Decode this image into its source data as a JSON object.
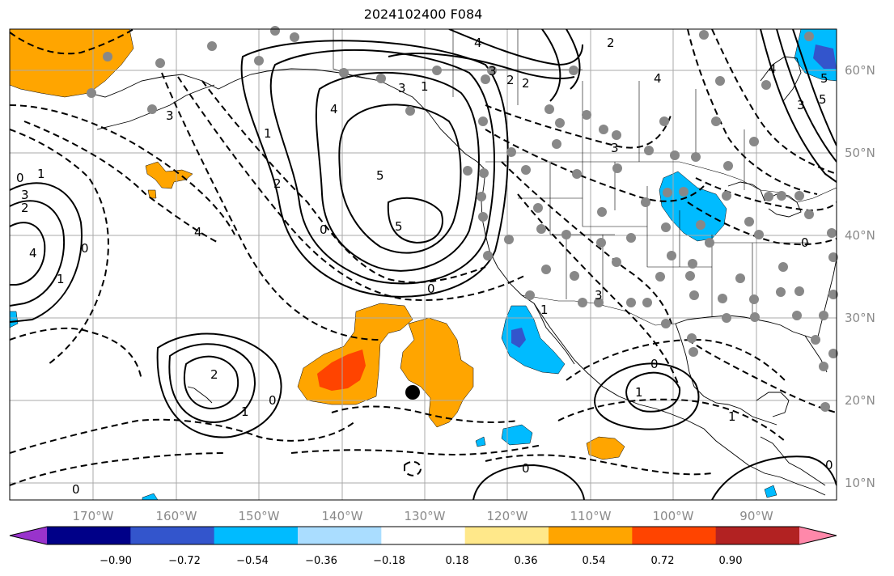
{
  "title": "2024102400 F084",
  "colors": {
    "bins": [
      "#9933cc",
      "#000088",
      "#3355cc",
      "#00bbff",
      "#aaddff",
      "#ffffff",
      "#ffe88a",
      "#ffa500",
      "#ff4400",
      "#b22222",
      "#ff88aa"
    ],
    "station": "#888888",
    "grid": "#aaaaaa",
    "contour": "#000000"
  },
  "lon_labels": [
    "170°W",
    "160°W",
    "150°W",
    "140°W",
    "130°W",
    "120°W",
    "110°W",
    "100°W",
    "90°W"
  ],
  "lat_labels": [
    "60°N",
    "50°N",
    "40°N",
    "30°N",
    "20°N",
    "10°N"
  ],
  "colorbar_ticks": [
    "−0.90",
    "−0.72",
    "−0.54",
    "−0.36",
    "−0.18",
    "0.18",
    "0.36",
    "0.54",
    "0.72",
    "0.90"
  ],
  "contour_labels": [
    "4",
    "3",
    "2",
    "2",
    "5",
    "4",
    "3",
    "5",
    "5",
    "4",
    "0",
    "1",
    "2",
    "3",
    "4",
    "3",
    "2",
    "1",
    "0",
    "3",
    "3",
    "2",
    "1",
    "0",
    "0",
    "4",
    "1",
    "0",
    "2",
    "1",
    "0",
    "1",
    "0",
    "0",
    "0",
    "1",
    "1",
    "0",
    "5",
    "4",
    "3"
  ]
}
